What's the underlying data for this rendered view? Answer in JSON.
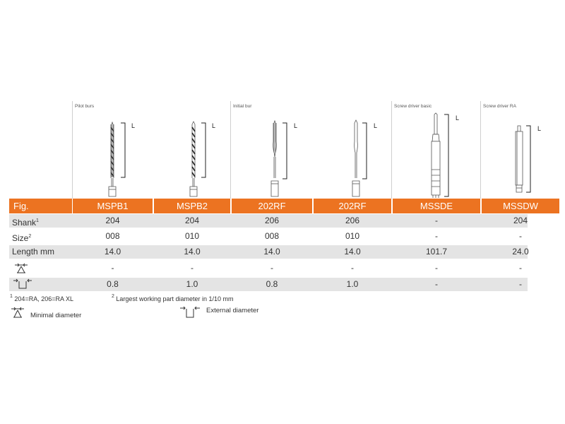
{
  "groups": [
    {
      "label": "Pilot burs"
    },
    {
      "label": "Initial bur"
    },
    {
      "label": "Screw driver basic"
    },
    {
      "label": "Screw driver RA"
    }
  ],
  "length_marker": "L",
  "header": {
    "fig_label": "Fig.",
    "columns": [
      "MSPB1",
      "MSPB2",
      "202RF",
      "202RF",
      "MSSDE",
      "MSSDW"
    ]
  },
  "rows": [
    {
      "label": "Shank",
      "sup": "1",
      "values": [
        "204",
        "204",
        "206",
        "206",
        "-",
        "204"
      ]
    },
    {
      "label": "Size",
      "sup": "2",
      "values": [
        "008",
        "010",
        "008",
        "010",
        "-",
        "-"
      ]
    },
    {
      "label": "Length mm",
      "sup": "",
      "values": [
        "14.0",
        "14.0",
        "14.0",
        "14.0",
        "101.7",
        "24.0"
      ]
    },
    {
      "label": "",
      "sup": "",
      "icon": "minimal-diameter-icon",
      "values": [
        "-",
        "-",
        "-",
        "-",
        "-",
        "-"
      ]
    },
    {
      "label": "",
      "sup": "",
      "icon": "external-diameter-icon",
      "values": [
        "0.8",
        "1.0",
        "0.8",
        "1.0",
        "-",
        "-"
      ]
    }
  ],
  "footnotes": {
    "note1_sup": "1",
    "note1": "204=RA, 206=RA XL",
    "note2_sup": "2",
    "note2": "Largest working part diameter in 1/10 mm"
  },
  "legend": {
    "minimal": "Minimal diameter",
    "external": "External diameter"
  },
  "colors": {
    "accent": "#ec7321",
    "row_shade": "#e4e4e4",
    "divider": "#cfcfcf"
  }
}
